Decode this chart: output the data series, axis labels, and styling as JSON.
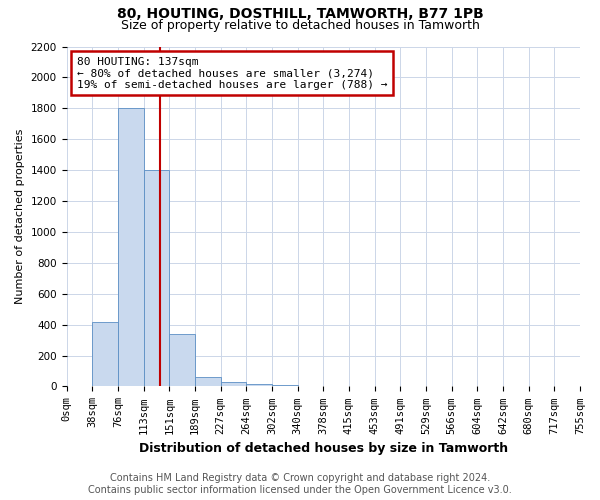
{
  "title": "80, HOUTING, DOSTHILL, TAMWORTH, B77 1PB",
  "subtitle": "Size of property relative to detached houses in Tamworth",
  "xlabel": "Distribution of detached houses by size in Tamworth",
  "ylabel": "Number of detached properties",
  "footer_line1": "Contains HM Land Registry data © Crown copyright and database right 2024.",
  "footer_line2": "Contains public sector information licensed under the Open Government Licence v3.0.",
  "bin_labels": [
    "0sqm",
    "38sqm",
    "76sqm",
    "113sqm",
    "151sqm",
    "189sqm",
    "227sqm",
    "264sqm",
    "302sqm",
    "340sqm",
    "378sqm",
    "415sqm",
    "453sqm",
    "491sqm",
    "529sqm",
    "566sqm",
    "604sqm",
    "642sqm",
    "680sqm",
    "717sqm",
    "755sqm"
  ],
  "bar_values": [
    2,
    420,
    1800,
    1400,
    340,
    60,
    30,
    15,
    8,
    4,
    2,
    1,
    1,
    0,
    0,
    0,
    0,
    0,
    0,
    0
  ],
  "bar_color": "#c9d9ee",
  "bar_edge_color": "#5b8ec4",
  "vline_color": "#c00000",
  "annotation_text": "80 HOUTING: 137sqm\n← 80% of detached houses are smaller (3,274)\n19% of semi-detached houses are larger (788) →",
  "annotation_box_color": "#ffffff",
  "annotation_box_edge": "#c00000",
  "ylim": [
    0,
    2200
  ],
  "yticks": [
    0,
    200,
    400,
    600,
    800,
    1000,
    1200,
    1400,
    1600,
    1800,
    2000,
    2200
  ],
  "background_color": "#ffffff",
  "grid_color": "#ccd6e8",
  "title_fontsize": 10,
  "subtitle_fontsize": 9,
  "ylabel_fontsize": 8,
  "xlabel_fontsize": 9,
  "tick_fontsize": 7.5,
  "annotation_fontsize": 8,
  "footer_fontsize": 7
}
